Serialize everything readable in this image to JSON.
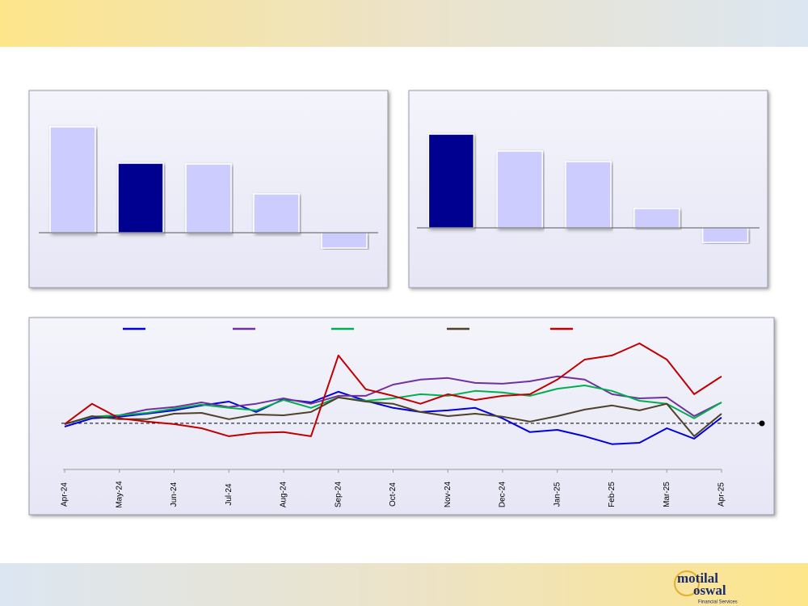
{
  "chart_data": [
    {
      "type": "bar",
      "values": [
        13.1,
        8.6,
        8.5,
        4.8,
        -1.9
      ],
      "colors": [
        "#ccccff",
        "#000090",
        "#ccccff",
        "#ccccff",
        "#ccccff"
      ],
      "ylim": [
        -6.7,
        17.5
      ]
    },
    {
      "type": "bar",
      "values": [
        11.6,
        9.5,
        8.2,
        2.4,
        -1.8
      ],
      "colors": [
        "#000090",
        "#ccccff",
        "#ccccff",
        "#ccccff",
        "#ccccff"
      ],
      "ylim": [
        -7.3,
        16.9
      ]
    },
    {
      "type": "line",
      "x": [
        0,
        0.5,
        1,
        1.5,
        2,
        2.5,
        3,
        3.5,
        4,
        4.5,
        5,
        5.5,
        6,
        6.5,
        7,
        7.5,
        8,
        8.5,
        9,
        9.5,
        10,
        10.5,
        11,
        11.5,
        12
      ],
      "xlim": [
        0,
        12
      ],
      "xticks": [
        {
          "value": 0,
          "label": "Apr-24"
        },
        {
          "value": 1,
          "label": "May-24"
        },
        {
          "value": 2,
          "label": "Jun-24"
        },
        {
          "value": 3,
          "label": "Jul-24"
        },
        {
          "value": 4,
          "label": "Aug-24"
        },
        {
          "value": 5,
          "label": "Sep-24"
        },
        {
          "value": 6,
          "label": "Oct-24"
        },
        {
          "value": 7,
          "label": "Nov-24"
        },
        {
          "value": 8,
          "label": "Dec-24"
        },
        {
          "value": 9,
          "label": "Jan-25"
        },
        {
          "value": 10,
          "label": "Feb-25"
        },
        {
          "value": 11,
          "label": "Mar-25"
        },
        {
          "value": 12,
          "label": "Apr-25"
        }
      ],
      "ylim": [
        -16.8,
        33.5
      ],
      "series": [
        {
          "color": "#0000e0",
          "values": [
            -1.2,
            1.8,
            2.4,
            3.5,
            4.7,
            6.5,
            7.9,
            4.1,
            8.8,
            7.6,
            11.5,
            8.2,
            5.6,
            4.1,
            4.7,
            5.6,
            1.8,
            -3.2,
            -2.4,
            -4.7,
            -7.6,
            -7.1,
            -1.8,
            -5.6,
            2.1
          ]
        },
        {
          "color": "#7030a0",
          "values": [
            -0.3,
            2.4,
            2.9,
            5,
            5.9,
            7.6,
            5.9,
            7.1,
            9.1,
            7.1,
            10,
            10,
            14.1,
            15.9,
            16.5,
            14.7,
            14.4,
            15.3,
            17.1,
            15.9,
            10.6,
            9.1,
            9.4,
            2.6,
            7.6
          ]
        },
        {
          "color": "#00b050",
          "values": [
            -0.3,
            2.4,
            2.9,
            3.8,
            5.3,
            6.8,
            5.6,
            4.7,
            8.5,
            5.6,
            9.4,
            8.2,
            9.1,
            10.6,
            10,
            11.8,
            11.2,
            10,
            12.6,
            13.8,
            11.8,
            8.2,
            7.1,
            1.8,
            7.6
          ]
        },
        {
          "color": "#4f4028",
          "values": [
            -0.3,
            2.6,
            1.5,
            1.5,
            3.5,
            3.8,
            1.5,
            3.2,
            2.9,
            4.1,
            9.4,
            7.9,
            7.1,
            4.1,
            2.6,
            3.5,
            2.4,
            0.6,
            2.6,
            5,
            6.5,
            4.7,
            7.1,
            -4.7,
            3.5
          ]
        },
        {
          "color": "#c00000",
          "values": [
            -0.3,
            7.1,
            1.8,
            0.6,
            -0.3,
            -1.8,
            -4.7,
            -3.5,
            -3.2,
            -4.7,
            24.7,
            12.4,
            10,
            7.1,
            10.6,
            8.5,
            10,
            10.6,
            15.9,
            23.2,
            24.7,
            29.1,
            23.2,
            10.6,
            17.1
          ]
        }
      ]
    }
  ],
  "logo": {
    "line1": "motilal",
    "line2": "oswal",
    "tagline": "Financial Services"
  }
}
